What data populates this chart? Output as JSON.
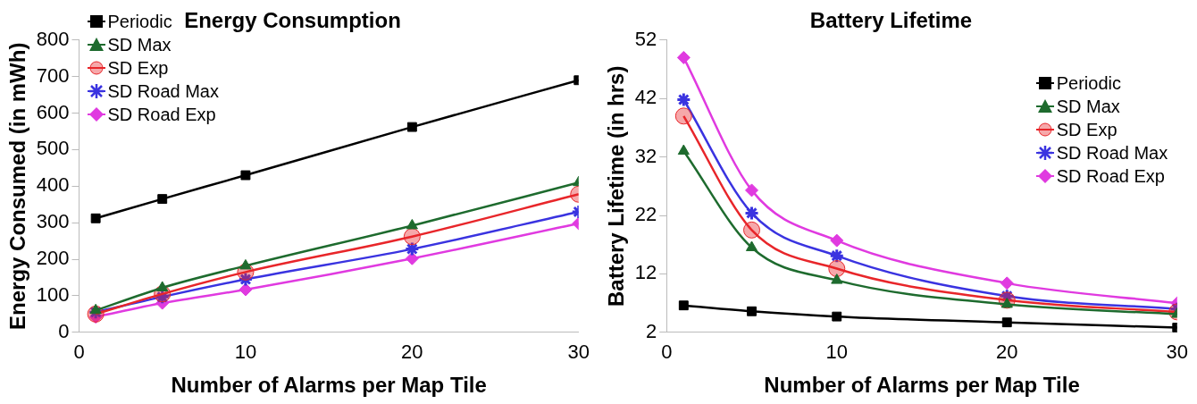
{
  "chart_data": [
    {
      "type": "line",
      "title": "Energy Consumption",
      "xlabel": "Number of Alarms per Map Tile",
      "ylabel": "Energy Consumed (in mWh)",
      "x": [
        1,
        5,
        10,
        20,
        30
      ],
      "xlim": [
        0,
        30
      ],
      "xticks": [
        0,
        10,
        20,
        30
      ],
      "ylim": [
        0,
        800
      ],
      "yticks": [
        0,
        100,
        200,
        300,
        400,
        500,
        600,
        700,
        800
      ],
      "grid": false,
      "legend": "top left",
      "series": [
        {
          "name": "Periodic",
          "color": "#000000",
          "marker": "square",
          "values": [
            312,
            365,
            430,
            562,
            690
          ]
        },
        {
          "name": "SD Max",
          "color": "#1e6b2e",
          "marker": "triangle",
          "values": [
            60,
            122,
            182,
            292,
            410
          ]
        },
        {
          "name": "SD Exp",
          "color": "#e8262a",
          "marker": "circle",
          "values": [
            50,
            105,
            165,
            262,
            378
          ]
        },
        {
          "name": "SD Road Max",
          "color": "#3a33e0",
          "marker": "cross",
          "values": [
            55,
            97,
            145,
            228,
            330
          ]
        },
        {
          "name": "SD Road Exp",
          "color": "#e03ae0",
          "marker": "diamond",
          "values": [
            42,
            80,
            117,
            202,
            298
          ]
        }
      ]
    },
    {
      "type": "line",
      "title": "Battery Lifetime",
      "xlabel": "Number of Alarms per Map Tile",
      "ylabel": "Battery Lifetime (in hrs)",
      "x": [
        1,
        5,
        10,
        20,
        30
      ],
      "xlim": [
        0,
        30
      ],
      "xticks": [
        0,
        10,
        20,
        30
      ],
      "ylim": [
        2,
        52
      ],
      "yticks": [
        2,
        12,
        22,
        32,
        42,
        52
      ],
      "grid": false,
      "legend": "top right",
      "series": [
        {
          "name": "Periodic",
          "color": "#000000",
          "marker": "square",
          "values": [
            6.6,
            5.6,
            4.7,
            3.7,
            2.8
          ]
        },
        {
          "name": "SD Max",
          "color": "#1e6b2e",
          "marker": "triangle",
          "values": [
            33,
            16.5,
            10.9,
            6.8,
            5.1
          ]
        },
        {
          "name": "SD Exp",
          "color": "#e8262a",
          "marker": "circle",
          "values": [
            39,
            19.5,
            12.9,
            7.5,
            5.5
          ]
        },
        {
          "name": "SD Road Max",
          "color": "#3a33e0",
          "marker": "cross",
          "values": [
            41.8,
            22.4,
            15.1,
            8.2,
            6
          ]
        },
        {
          "name": "SD Road Exp",
          "color": "#e03ae0",
          "marker": "diamond",
          "values": [
            49,
            26.3,
            17.7,
            10.4,
            7
          ]
        }
      ]
    }
  ]
}
